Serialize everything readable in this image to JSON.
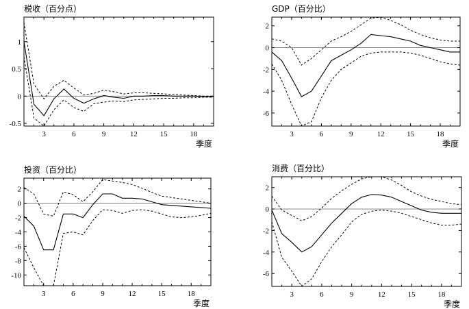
{
  "chart_data": [
    {
      "type": "line",
      "title": "税收（百分点）",
      "xlabel": "季度",
      "ylabel": "",
      "xlim": [
        1,
        20
      ],
      "ylim": [
        -0.55,
        1.45
      ],
      "xticks": [
        3,
        6,
        9,
        12,
        15,
        18
      ],
      "yticks": [
        -0.5,
        0,
        0.5,
        1
      ],
      "ytick_labels": [
        "-0.5",
        "0",
        "0.5",
        "1"
      ],
      "series": [
        {
          "name": "response",
          "style": "solid",
          "x": [
            1,
            2,
            3,
            4,
            5,
            6,
            7,
            8,
            9,
            10,
            11,
            12,
            13,
            14,
            15,
            16,
            17,
            18,
            19,
            20
          ],
          "values": [
            1.0,
            -0.15,
            -0.36,
            -0.05,
            0.13,
            -0.04,
            -0.13,
            -0.05,
            0.01,
            -0.02,
            -0.04,
            0.0,
            0.0,
            0.01,
            0.01,
            0.0,
            0.0,
            0.0,
            -0.01,
            -0.01
          ]
        },
        {
          "name": "upper bound",
          "style": "dashed",
          "x": [
            1,
            2,
            3,
            4,
            5,
            6,
            7,
            8,
            9,
            10,
            11,
            12,
            13,
            14,
            15,
            16,
            17,
            18,
            19,
            20
          ],
          "values": [
            1.35,
            0.22,
            -0.05,
            0.18,
            0.29,
            0.15,
            0.02,
            0.05,
            0.11,
            0.08,
            0.04,
            0.06,
            0.06,
            0.05,
            0.04,
            0.03,
            0.02,
            0.01,
            0.0,
            0.0
          ]
        },
        {
          "name": "lower bound",
          "style": "dashed",
          "x": [
            1,
            2,
            3,
            4,
            5,
            6,
            7,
            8,
            9,
            10,
            11,
            12,
            13,
            14,
            15,
            16,
            17,
            18,
            19,
            20
          ],
          "values": [
            0.72,
            -0.4,
            -0.55,
            -0.25,
            -0.07,
            -0.21,
            -0.28,
            -0.14,
            -0.11,
            -0.09,
            -0.1,
            -0.07,
            -0.06,
            -0.05,
            -0.04,
            -0.04,
            -0.03,
            -0.03,
            -0.02,
            -0.02
          ]
        }
      ]
    },
    {
      "type": "line",
      "title": "GDP（百分比）",
      "xlabel": "季度",
      "ylabel": "",
      "xlim": [
        1,
        20
      ],
      "ylim": [
        -7.2,
        2.8
      ],
      "xticks": [
        3,
        6,
        9,
        12,
        15,
        18
      ],
      "yticks": [
        -6,
        -4,
        -2,
        0,
        2
      ],
      "ytick_labels": [
        "-6",
        "-4",
        "-2",
        "0",
        "2"
      ],
      "series": [
        {
          "name": "response",
          "style": "solid",
          "x": [
            1,
            2,
            3,
            4,
            5,
            6,
            7,
            8,
            9,
            10,
            11,
            12,
            13,
            14,
            15,
            16,
            17,
            18,
            19,
            20
          ],
          "values": [
            -0.4,
            -1.2,
            -2.8,
            -4.5,
            -4.0,
            -2.6,
            -1.2,
            -0.7,
            -0.2,
            0.4,
            1.2,
            1.1,
            1.0,
            0.8,
            0.6,
            0.2,
            0.0,
            -0.2,
            -0.4,
            -0.4
          ]
        },
        {
          "name": "upper bound",
          "style": "dashed",
          "x": [
            1,
            2,
            3,
            4,
            5,
            6,
            7,
            8,
            9,
            10,
            11,
            12,
            13,
            14,
            15,
            16,
            17,
            18,
            19,
            20
          ],
          "values": [
            0.8,
            0.6,
            0.0,
            -1.6,
            -1.0,
            -0.2,
            0.6,
            1.0,
            1.5,
            2.1,
            2.7,
            2.8,
            2.5,
            2.1,
            1.6,
            1.2,
            0.9,
            0.7,
            0.6,
            0.6
          ]
        },
        {
          "name": "lower bound",
          "style": "dashed",
          "x": [
            1,
            2,
            3,
            4,
            5,
            6,
            7,
            8,
            9,
            10,
            11,
            12,
            13,
            14,
            15,
            16,
            17,
            18,
            19,
            20
          ],
          "values": [
            -1.5,
            -3.0,
            -5.2,
            -7.4,
            -6.8,
            -4.6,
            -3.0,
            -2.0,
            -1.4,
            -0.8,
            -0.5,
            -0.4,
            -0.4,
            -0.4,
            -0.5,
            -0.7,
            -1.0,
            -1.3,
            -1.5,
            -1.6
          ]
        }
      ]
    },
    {
      "type": "line",
      "title": "投资（百分比）",
      "xlabel": "季度",
      "ylabel": "",
      "xlim": [
        1,
        20
      ],
      "ylim": [
        -11.5,
        3.5
      ],
      "xticks": [
        3,
        6,
        9,
        12,
        15,
        18
      ],
      "yticks": [
        -10,
        -8,
        -6,
        -4,
        -2,
        0,
        2
      ],
      "ytick_labels": [
        "-10",
        "-8",
        "-6",
        "-4",
        "-2",
        "0",
        "2"
      ],
      "series": [
        {
          "name": "response",
          "style": "solid",
          "x": [
            1,
            2,
            3,
            4,
            5,
            6,
            7,
            8,
            9,
            10,
            11,
            12,
            13,
            14,
            15,
            16,
            17,
            18,
            19,
            20
          ],
          "values": [
            -1.8,
            -3.2,
            -6.5,
            -6.5,
            -1.5,
            -1.5,
            -2.0,
            -0.2,
            1.3,
            1.3,
            0.7,
            0.7,
            0.6,
            0.2,
            -0.2,
            -0.3,
            -0.4,
            -0.5,
            -0.6,
            -0.7
          ]
        },
        {
          "name": "upper bound",
          "style": "dashed",
          "x": [
            1,
            2,
            3,
            4,
            5,
            6,
            7,
            8,
            9,
            10,
            11,
            12,
            13,
            14,
            15,
            16,
            17,
            18,
            19,
            20
          ],
          "values": [
            2.2,
            1.3,
            -1.5,
            -1.8,
            1.6,
            1.2,
            0.2,
            1.6,
            3.3,
            3.1,
            2.9,
            2.6,
            2.1,
            1.5,
            1.0,
            0.8,
            0.6,
            0.4,
            0.2,
            0.0
          ]
        },
        {
          "name": "lower bound",
          "style": "dashed",
          "x": [
            1,
            2,
            3,
            4,
            5,
            6,
            7,
            8,
            9,
            10,
            11,
            12,
            13,
            14,
            15,
            16,
            17,
            18,
            19,
            20
          ],
          "values": [
            -6.2,
            -9.0,
            -11.5,
            -11.5,
            -4.2,
            -4.0,
            -4.4,
            -2.4,
            -0.9,
            -1.0,
            -1.4,
            -1.0,
            -0.9,
            -1.1,
            -1.5,
            -1.9,
            -2.0,
            -1.9,
            -1.7,
            -1.4
          ]
        }
      ]
    },
    {
      "type": "line",
      "title": "消费（百分比）",
      "xlabel": "季度",
      "ylabel": "",
      "xlim": [
        1,
        20
      ],
      "ylim": [
        -7.2,
        3.0
      ],
      "xticks": [
        3,
        6,
        9,
        12,
        15,
        18
      ],
      "yticks": [
        -6,
        -4,
        -2,
        0,
        2
      ],
      "ytick_labels": [
        "-6",
        "-4",
        "-2",
        "0",
        "2"
      ],
      "series": [
        {
          "name": "response",
          "style": "solid",
          "x": [
            1,
            2,
            3,
            4,
            5,
            6,
            7,
            8,
            9,
            10,
            11,
            12,
            13,
            14,
            15,
            16,
            17,
            18,
            19,
            20
          ],
          "values": [
            -0.1,
            -2.3,
            -3.1,
            -4.0,
            -3.5,
            -2.4,
            -1.3,
            -0.4,
            0.5,
            1.1,
            1.35,
            1.3,
            1.1,
            0.7,
            0.3,
            -0.1,
            -0.3,
            -0.4,
            -0.4,
            -0.4
          ]
        },
        {
          "name": "upper bound",
          "style": "dashed",
          "x": [
            1,
            2,
            3,
            4,
            5,
            6,
            7,
            8,
            9,
            10,
            11,
            12,
            13,
            14,
            15,
            16,
            17,
            18,
            19,
            20
          ],
          "values": [
            1.2,
            -0.1,
            -0.6,
            -1.1,
            -0.7,
            0.1,
            1.0,
            1.7,
            2.3,
            2.8,
            3.0,
            3.0,
            2.7,
            2.2,
            1.6,
            1.2,
            0.9,
            0.7,
            0.5,
            0.4
          ]
        },
        {
          "name": "lower bound",
          "style": "dashed",
          "x": [
            1,
            2,
            3,
            4,
            5,
            6,
            7,
            8,
            9,
            10,
            11,
            12,
            13,
            14,
            15,
            16,
            17,
            18,
            19,
            20
          ],
          "values": [
            -1.2,
            -4.5,
            -5.8,
            -7.2,
            -6.5,
            -4.9,
            -3.5,
            -2.4,
            -1.2,
            -0.5,
            -0.2,
            -0.1,
            -0.2,
            -0.4,
            -0.7,
            -1.0,
            -1.3,
            -1.5,
            -1.5,
            -1.4
          ]
        }
      ]
    }
  ]
}
